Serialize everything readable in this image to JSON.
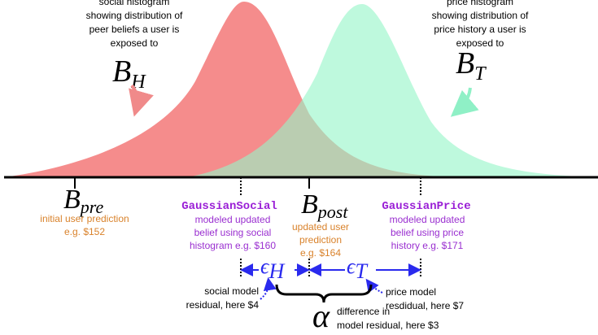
{
  "social_histogram": {
    "description": [
      "social histogram",
      "showing distribution of",
      "peer beliefs a user is",
      "exposed to"
    ],
    "symbol": {
      "symbol": "B",
      "subscript": "H"
    }
  },
  "price_histogram": {
    "description": [
      "price histogram",
      "showing distribution of",
      "price history a user is",
      "exposed to"
    ],
    "symbol": {
      "symbol": "B",
      "subscript": "T"
    }
  },
  "b_pre": {
    "symbol": {
      "symbol": "B",
      "subscript": "pre"
    },
    "description": [
      "initial user prediction",
      "e.g. $152"
    ]
  },
  "gaussian_social": {
    "name": "GaussianSocial",
    "description": [
      "modeled updated",
      "belief using social",
      "histogram e.g. $160"
    ]
  },
  "b_post": {
    "symbol": {
      "symbol": "B",
      "subscript": "post"
    },
    "description": [
      "updated user",
      "prediction",
      "e.g. $164"
    ]
  },
  "gaussian_price": {
    "name": "GaussianPrice",
    "description": [
      "modeled updated",
      "belief using price",
      "history e.g. $171"
    ]
  },
  "epsilon_h": {
    "symbol": "ϵ",
    "subscript": "H"
  },
  "epsilon_t": {
    "symbol": "ϵ",
    "subscript": "T"
  },
  "social_residual": [
    "social model",
    "residual, here $4"
  ],
  "price_residual": [
    "price model",
    "resdidual, here $7"
  ],
  "alpha": {
    "symbol": "α",
    "description": [
      "difference in",
      "model residual, here $3"
    ]
  }
}
